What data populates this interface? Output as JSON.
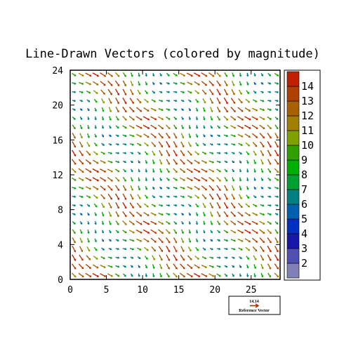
{
  "chart_data": {
    "type": "vector-field",
    "title": "Line-Drawn Vectors (colored by magnitude)",
    "xlabel": "",
    "ylabel": "",
    "xlim": [
      0,
      29
    ],
    "ylim": [
      0,
      24
    ],
    "x_ticks": [
      0,
      5,
      10,
      15,
      20,
      25
    ],
    "y_ticks": [
      0,
      4,
      8,
      12,
      16,
      20,
      24
    ],
    "grid": false,
    "field": {
      "x_start": 0.5,
      "x_step": 1,
      "x_count": 29,
      "y_start": 0.5,
      "y_step": 1,
      "y_count": 24,
      "u": "6*sin(2*pi*x/14)*cos(2*pi*y/12) + 7",
      "v": "-6*cos(2*pi*x/14)*sin(2*pi*y/12) - 7",
      "magnitude_range": [
        1.5,
        14.2
      ]
    },
    "colorbar": {
      "levels": [
        1.5,
        2.5,
        3.5,
        4.5,
        5.5,
        6.5,
        7.5,
        8.5,
        9.5,
        10.5,
        11.5,
        12.5,
        13.5,
        14.5
      ],
      "labels": [
        "2",
        "3",
        "4",
        "5",
        "6",
        "7",
        "8",
        "9",
        "10",
        "11",
        "12",
        "13",
        "14"
      ],
      "colors": [
        "#8080b8",
        "#5050b0",
        "#1818a8",
        "#0030c0",
        "#0060b0",
        "#008080",
        "#00a030",
        "#00b000",
        "#30a000",
        "#80a000",
        "#a08000",
        "#a86000",
        "#b04000",
        "#c02000"
      ],
      "placement": "right"
    },
    "reference_vector": {
      "value": "14.14",
      "label": "Reference Vector",
      "color": "#c02000"
    }
  }
}
